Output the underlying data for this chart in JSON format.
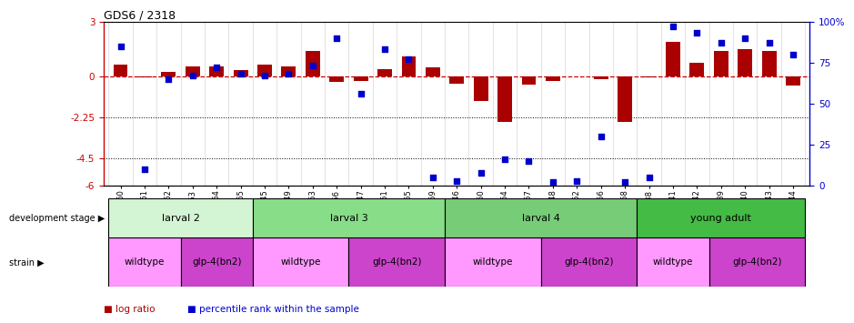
{
  "title": "GDS6 / 2318",
  "samples": [
    "GSM460",
    "GSM461",
    "GSM462",
    "GSM463",
    "GSM464",
    "GSM465",
    "GSM445",
    "GSM449",
    "GSM453",
    "GSM466",
    "GSM447",
    "GSM451",
    "GSM455",
    "GSM459",
    "GSM446",
    "GSM450",
    "GSM454",
    "GSM457",
    "GSM448",
    "GSM452",
    "GSM456",
    "GSM458",
    "GSM438",
    "GSM441",
    "GSM442",
    "GSM439",
    "GSM440",
    "GSM443",
    "GSM444"
  ],
  "log_ratio": [
    0.65,
    -0.05,
    0.25,
    0.55,
    0.55,
    0.35,
    0.65,
    0.55,
    1.4,
    -0.3,
    -0.25,
    0.4,
    1.1,
    0.5,
    -0.4,
    -1.35,
    -2.5,
    -0.45,
    -0.25,
    0.0,
    -0.15,
    -2.5,
    -0.05,
    1.9,
    0.75,
    1.4,
    1.5,
    1.4,
    -0.5
  ],
  "percentile": [
    85,
    10,
    65,
    67,
    72,
    68,
    67,
    68,
    73,
    90,
    56,
    83,
    77,
    5,
    3,
    8,
    16,
    15,
    2,
    3,
    30,
    2,
    5,
    97,
    93,
    87,
    90,
    87,
    80
  ],
  "dev_stages": [
    {
      "label": "larval 2",
      "start": 0,
      "end": 6,
      "color": "#d4f5d4"
    },
    {
      "label": "larval 3",
      "start": 6,
      "end": 14,
      "color": "#88dd88"
    },
    {
      "label": "larval 4",
      "start": 14,
      "end": 22,
      "color": "#77cc77"
    },
    {
      "label": "young adult",
      "start": 22,
      "end": 29,
      "color": "#44bb44"
    }
  ],
  "strains": [
    {
      "label": "wildtype",
      "start": 0,
      "end": 3,
      "color": "#ff99ff"
    },
    {
      "label": "glp-4(bn2)",
      "start": 3,
      "end": 6,
      "color": "#cc44cc"
    },
    {
      "label": "wildtype",
      "start": 6,
      "end": 10,
      "color": "#ff99ff"
    },
    {
      "label": "glp-4(bn2)",
      "start": 10,
      "end": 14,
      "color": "#cc44cc"
    },
    {
      "label": "wildtype",
      "start": 14,
      "end": 18,
      "color": "#ff99ff"
    },
    {
      "label": "glp-4(bn2)",
      "start": 18,
      "end": 22,
      "color": "#cc44cc"
    },
    {
      "label": "wildtype",
      "start": 22,
      "end": 25,
      "color": "#ff99ff"
    },
    {
      "label": "glp-4(bn2)",
      "start": 25,
      "end": 29,
      "color": "#cc44cc"
    }
  ],
  "ylim_left": [
    -6,
    3
  ],
  "yticks_left": [
    3,
    0,
    -2.25,
    -4.5,
    -6
  ],
  "yticks_right": [
    100,
    75,
    50,
    25,
    0
  ],
  "bar_color": "#aa0000",
  "dot_color": "#0000cc",
  "bg_color": "#ffffff"
}
